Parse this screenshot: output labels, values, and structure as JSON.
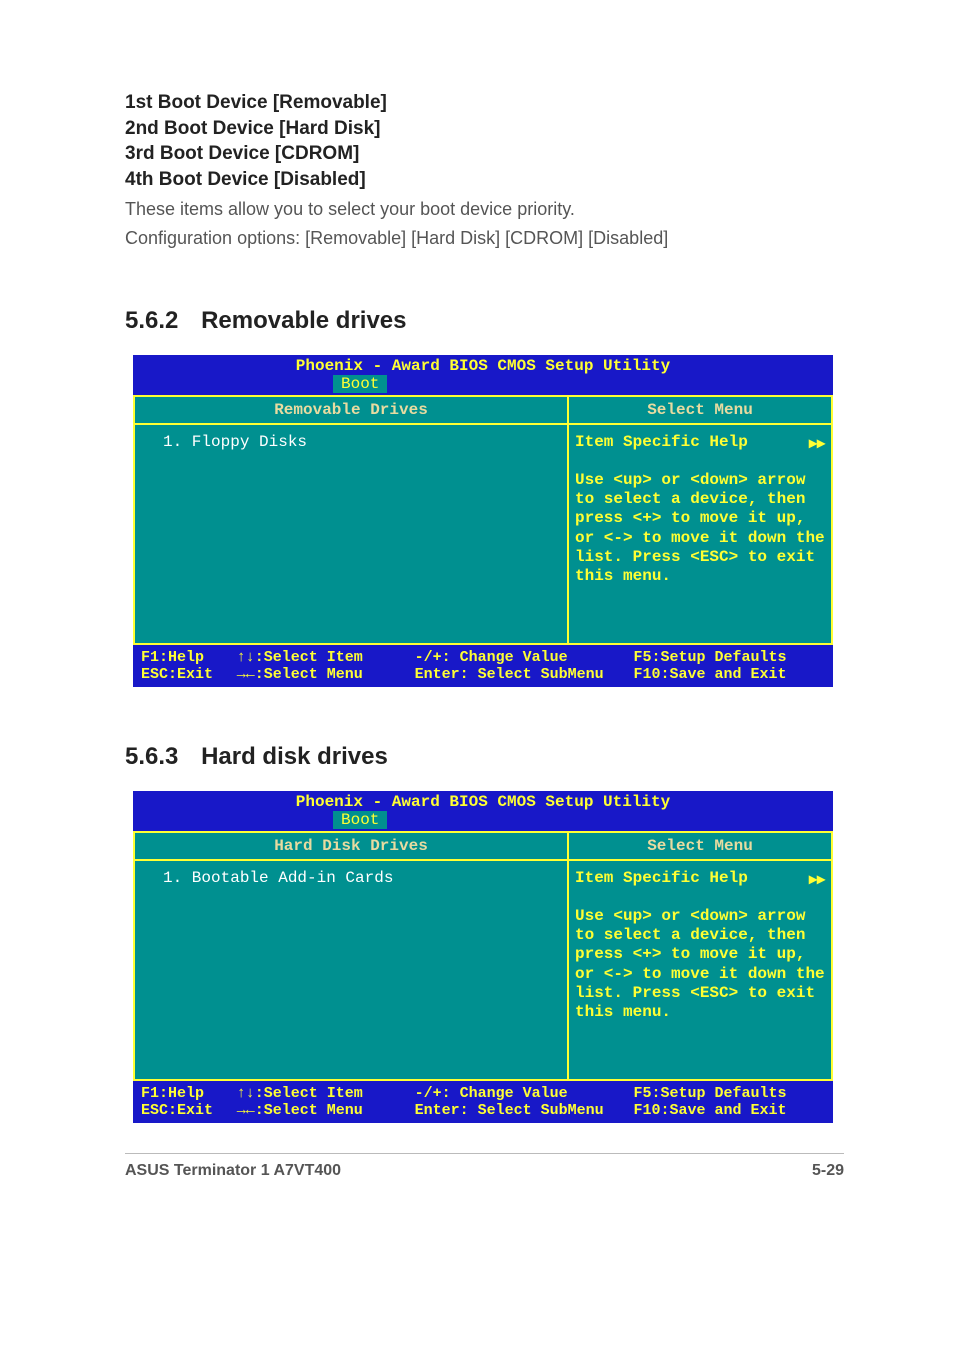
{
  "boot_devices": {
    "lines": [
      "1st Boot Device [Removable]",
      "2nd Boot Device [Hard Disk]",
      "3rd Boot Device [CDROM]",
      "4th Boot Device [Disabled]"
    ],
    "desc1": "These items allow you to select your boot device priority.",
    "desc2": "Configuration options: [Removable] [Hard Disk] [CDROM] [Disabled]"
  },
  "section_562": {
    "num": "5.6.2",
    "title": "Removable drives"
  },
  "section_563": {
    "num": "5.6.3",
    "title": "Hard disk drives"
  },
  "bios_common": {
    "utility_title": "Phoenix - Award BIOS CMOS Setup Utility",
    "tab": "Boot",
    "right_head": "Select Menu",
    "help_head": "Item Specific Help",
    "help_arrow": "▸▸",
    "help_body": "Use <up> or <down> arrow to select a device, then press <+> to move it up, or <-> to move it down the list. Press <ESC> to exit this menu.",
    "footer": {
      "f1": "F1:Help",
      "select_item": "↑↓:Select Item",
      "change_value": "-/+: Change Value",
      "setup_defaults": "F5:Setup Defaults",
      "esc": "ESC:Exit",
      "select_menu": "→←:Select Menu",
      "enter_submenu": "Enter: Select SubMenu",
      "save_exit": "F10:Save and Exit"
    }
  },
  "bios_removable": {
    "left_head": "Removable Drives",
    "item1": "1. Floppy Disks"
  },
  "bios_hdd": {
    "left_head": "Hard Disk Drives",
    "item1": "1. Bootable Add-in Cards"
  },
  "footer": {
    "left": "ASUS Terminator 1 A7VT400",
    "right": "5-29"
  },
  "colors": {
    "bios_blue": "#1818c8",
    "bios_teal": "#009090",
    "bios_yellow": "#ffff33",
    "bios_cream": "#e8dba0",
    "text": "#222222",
    "muted": "#555555"
  }
}
